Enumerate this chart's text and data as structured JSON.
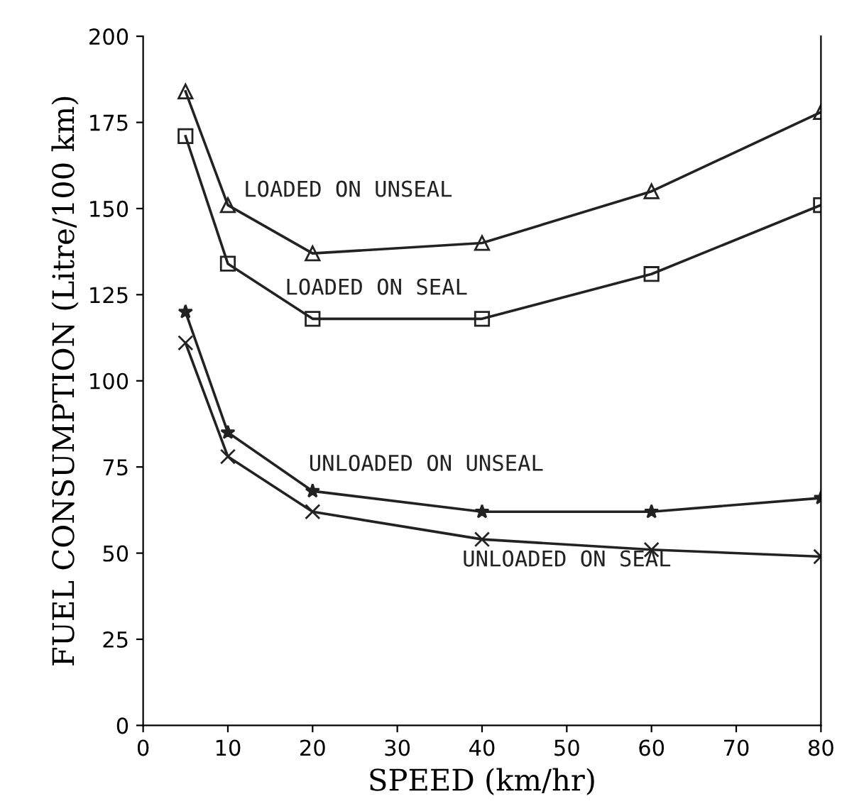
{
  "chart_data": {
    "type": "line",
    "xlabel": "SPEED (km/hr)",
    "ylabel": "FUEL CONSUMPTION (Litre/100 km)",
    "x": [
      5,
      10,
      20,
      40,
      60,
      80
    ],
    "series": [
      {
        "name": "LOADED ON UNSEAL",
        "color": "#222222",
        "marker": "triangle",
        "values": [
          184,
          151,
          137,
          140,
          155,
          178
        ]
      },
      {
        "name": "LOADED ON SEAL",
        "color": "#222222",
        "marker": "square",
        "values": [
          171,
          134,
          118,
          118,
          131,
          151
        ]
      },
      {
        "name": "UNLOADED ON UNSEAL",
        "color": "#222222",
        "marker": "star",
        "values": [
          120,
          85,
          68,
          62,
          62,
          66
        ]
      },
      {
        "name": "UNLOADED ON SEAL",
        "color": "#222222",
        "marker": "cross",
        "values": [
          111,
          78,
          62,
          54,
          51,
          49
        ]
      }
    ],
    "xlim": [
      0,
      80
    ],
    "xticks": [
      0,
      10,
      20,
      30,
      40,
      50,
      60,
      70,
      80
    ],
    "ylim": [
      0,
      200
    ],
    "yticks": [
      0,
      25,
      50,
      75,
      100,
      125,
      150,
      175,
      200
    ],
    "grid": false,
    "legend": false,
    "line_style": "solid"
  }
}
